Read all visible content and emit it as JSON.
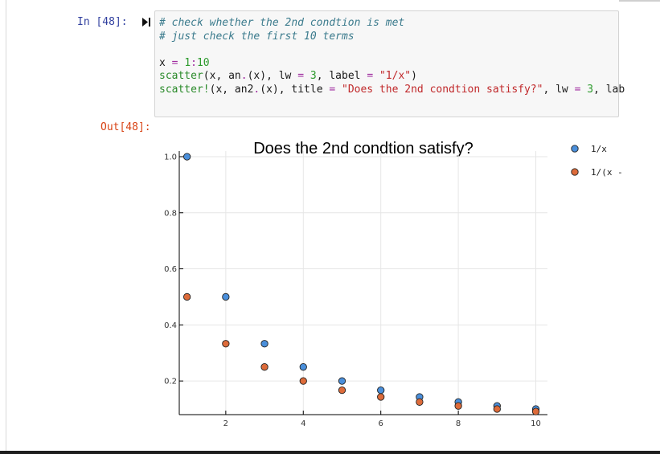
{
  "cell": {
    "in_prompt": "In [48]:",
    "out_prompt": "Out[48]:",
    "code_lines": [
      "# check whether the 2nd condtion is met",
      "# just check the first 10 terms",
      "",
      "x = 1:10",
      "scatter(x, an.(x), lw = 3, label = \"1/x\")",
      "scatter!(x, an2.(x), title = \"Does the 2nd condtion satisfy?\", lw = 3, lab"
    ]
  },
  "icons": {
    "run": "run-cell-icon"
  },
  "colors": {
    "series1": "#4a8fdb",
    "series2": "#dd6b3a",
    "prompt_in": "#303f9f",
    "prompt_out": "#d84315"
  },
  "chart_data": {
    "type": "scatter",
    "title": "Does the 2nd condtion satisfy?",
    "xlabel": "",
    "ylabel": "",
    "x_ticks": [
      2,
      4,
      6,
      8,
      10
    ],
    "y_ticks": [
      0.2,
      0.4,
      0.6,
      0.8,
      1.0
    ],
    "x_tick_labels": [
      "2",
      "4",
      "6",
      "8",
      "10"
    ],
    "y_tick_labels": [
      "0.2",
      "0.4",
      "0.6",
      "0.8",
      "1.0"
    ],
    "xlim": [
      0.8,
      10.3
    ],
    "ylim": [
      0.08,
      1.02
    ],
    "grid": true,
    "legend": "right",
    "x": [
      1,
      2,
      3,
      4,
      5,
      6,
      7,
      8,
      9,
      10
    ],
    "series": [
      {
        "name": "1/x",
        "values": [
          1.0,
          0.5,
          0.333,
          0.25,
          0.2,
          0.167,
          0.143,
          0.125,
          0.111,
          0.1
        ]
      },
      {
        "name": "1/(x -",
        "values": [
          0.5,
          0.333,
          0.25,
          0.2,
          0.167,
          0.143,
          0.125,
          0.111,
          0.1,
          0.091
        ]
      }
    ]
  }
}
